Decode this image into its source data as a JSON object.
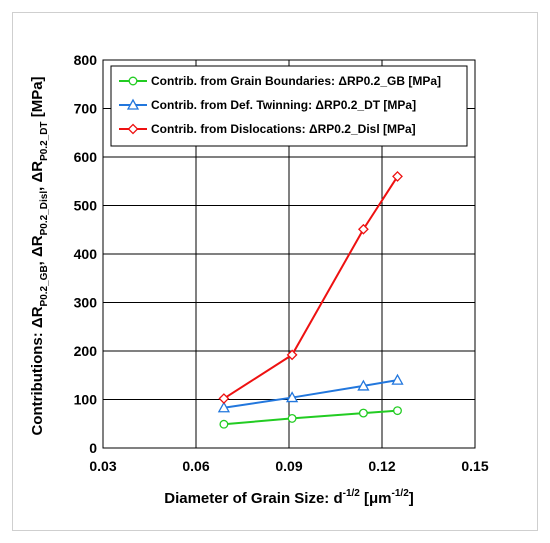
{
  "chart_data": {
    "type": "line",
    "xlabel": "Diameter of Grain Size: d",
    "xlabel_sup": "-1/2",
    "xlabel_unit_open": " [μm",
    "xlabel_unit_sup": "-1/2",
    "xlabel_unit_close": "]",
    "ylabel_parts": [
      {
        "text": "Contributions: ΔR",
        "sub": false
      },
      {
        "text": "P0.2_GB",
        "sub": true
      },
      {
        "text": ", ΔR",
        "sub": false
      },
      {
        "text": "P0.2_Disl",
        "sub": true
      },
      {
        "text": ", ΔR",
        "sub": false
      },
      {
        "text": "P0.2_DT",
        "sub": true
      },
      {
        "text": "  [MPa]",
        "sub": false
      }
    ],
    "xlim": [
      0.03,
      0.15
    ],
    "ylim": [
      0,
      800
    ],
    "x_ticks": [
      "0.03",
      "0.06",
      "0.09",
      "0.12",
      "0.15"
    ],
    "y_ticks": [
      "0",
      "100",
      "200",
      "300",
      "400",
      "500",
      "600",
      "700",
      "800"
    ],
    "grid": true,
    "legend_position": "top",
    "series": [
      {
        "name": "Contrib. from Grain Boundaries: ΔRP0.2_GB  [MPa]",
        "color": "#22cc22",
        "marker": "circle",
        "x": [
          0.069,
          0.091,
          0.114,
          0.125
        ],
        "y": [
          49,
          61,
          72,
          77
        ]
      },
      {
        "name": "Contrib. from Def. Twinning: ΔRP0.2_DT [MPa]",
        "color": "#2277dd",
        "marker": "triangle",
        "x": [
          0.069,
          0.091,
          0.114,
          0.125
        ],
        "y": [
          83,
          104,
          128,
          140
        ]
      },
      {
        "name": "Contrib. from Dislocations:   ΔRP0.2_Disl [MPa]",
        "color": "#ee1111",
        "marker": "diamond",
        "x": [
          0.069,
          0.091,
          0.114,
          0.125
        ],
        "y": [
          102,
          192,
          451,
          560
        ]
      }
    ]
  }
}
